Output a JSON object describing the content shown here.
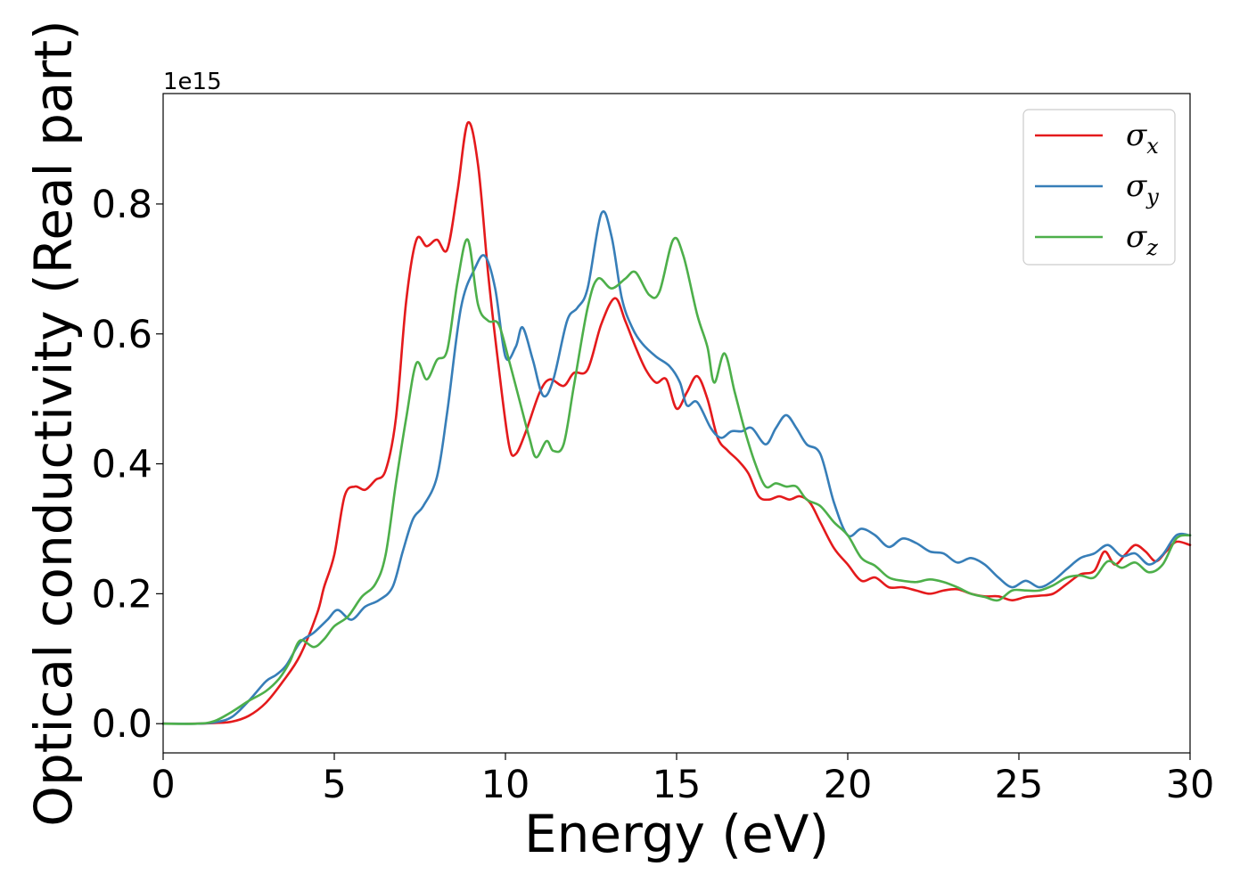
{
  "chart_data": {
    "type": "line",
    "title": "",
    "xlabel": "Energy (eV)",
    "ylabel": "Optical conductivity (Real part)",
    "y_offset_label": "1e15",
    "xlim": [
      0,
      30
    ],
    "ylim": [
      -0.045,
      0.97
    ],
    "x_ticks": [
      0,
      5,
      10,
      15,
      20,
      25,
      30
    ],
    "x_tick_labels": [
      "0",
      "5",
      "10",
      "15",
      "20",
      "25",
      "30"
    ],
    "y_ticks": [
      0.0,
      0.2,
      0.4,
      0.6,
      0.8
    ],
    "y_tick_labels": [
      "0.0",
      "0.2",
      "0.4",
      "0.6",
      "0.8"
    ],
    "grid": false,
    "legend_position": "top-right",
    "series": [
      {
        "name": "σx",
        "legend_symbol": "σ",
        "legend_sub": "x",
        "color": "#e41a1c",
        "points": [
          [
            0,
            0
          ],
          [
            1,
            0
          ],
          [
            1.5,
            0.001
          ],
          [
            2,
            0.003
          ],
          [
            2.5,
            0.012
          ],
          [
            3,
            0.032
          ],
          [
            3.5,
            0.065
          ],
          [
            4,
            0.105
          ],
          [
            4.5,
            0.17
          ],
          [
            4.7,
            0.21
          ],
          [
            5,
            0.26
          ],
          [
            5.3,
            0.35
          ],
          [
            5.6,
            0.365
          ],
          [
            5.9,
            0.36
          ],
          [
            6.2,
            0.375
          ],
          [
            6.5,
            0.39
          ],
          [
            6.8,
            0.47
          ],
          [
            7.1,
            0.65
          ],
          [
            7.4,
            0.745
          ],
          [
            7.7,
            0.735
          ],
          [
            8,
            0.745
          ],
          [
            8.3,
            0.73
          ],
          [
            8.6,
            0.82
          ],
          [
            8.9,
            0.925
          ],
          [
            9.2,
            0.86
          ],
          [
            9.5,
            0.69
          ],
          [
            9.8,
            0.55
          ],
          [
            10.1,
            0.43
          ],
          [
            10.3,
            0.415
          ],
          [
            10.6,
            0.45
          ],
          [
            11,
            0.51
          ],
          [
            11.3,
            0.53
          ],
          [
            11.7,
            0.52
          ],
          [
            12,
            0.54
          ],
          [
            12.4,
            0.545
          ],
          [
            12.8,
            0.615
          ],
          [
            13.2,
            0.655
          ],
          [
            13.5,
            0.62
          ],
          [
            13.8,
            0.58
          ],
          [
            14.1,
            0.545
          ],
          [
            14.4,
            0.525
          ],
          [
            14.7,
            0.53
          ],
          [
            15,
            0.485
          ],
          [
            15.3,
            0.51
          ],
          [
            15.6,
            0.535
          ],
          [
            15.9,
            0.5
          ],
          [
            16.2,
            0.44
          ],
          [
            16.5,
            0.42
          ],
          [
            16.8,
            0.405
          ],
          [
            17.1,
            0.385
          ],
          [
            17.4,
            0.35
          ],
          [
            17.7,
            0.345
          ],
          [
            18,
            0.35
          ],
          [
            18.3,
            0.345
          ],
          [
            18.6,
            0.35
          ],
          [
            18.9,
            0.34
          ],
          [
            19.2,
            0.31
          ],
          [
            19.6,
            0.27
          ],
          [
            20,
            0.245
          ],
          [
            20.4,
            0.22
          ],
          [
            20.8,
            0.225
          ],
          [
            21.2,
            0.21
          ],
          [
            21.6,
            0.21
          ],
          [
            22,
            0.205
          ],
          [
            22.4,
            0.2
          ],
          [
            22.8,
            0.205
          ],
          [
            23.2,
            0.207
          ],
          [
            23.6,
            0.2
          ],
          [
            24,
            0.196
          ],
          [
            24.4,
            0.196
          ],
          [
            24.8,
            0.19
          ],
          [
            25.2,
            0.195
          ],
          [
            25.6,
            0.197
          ],
          [
            26,
            0.2
          ],
          [
            26.4,
            0.215
          ],
          [
            26.8,
            0.23
          ],
          [
            27.2,
            0.235
          ],
          [
            27.5,
            0.265
          ],
          [
            27.8,
            0.245
          ],
          [
            28.1,
            0.26
          ],
          [
            28.4,
            0.275
          ],
          [
            28.7,
            0.265
          ],
          [
            29,
            0.25
          ],
          [
            29.3,
            0.265
          ],
          [
            29.6,
            0.28
          ],
          [
            30,
            0.275
          ]
        ]
      },
      {
        "name": "σy",
        "legend_symbol": "σ",
        "legend_sub": "y",
        "color": "#377eb8",
        "points": [
          [
            0,
            0
          ],
          [
            1,
            0
          ],
          [
            1.5,
            0.002
          ],
          [
            2,
            0.01
          ],
          [
            2.5,
            0.035
          ],
          [
            3,
            0.065
          ],
          [
            3.3,
            0.075
          ],
          [
            3.6,
            0.09
          ],
          [
            4,
            0.125
          ],
          [
            4.4,
            0.14
          ],
          [
            4.8,
            0.16
          ],
          [
            5.1,
            0.175
          ],
          [
            5.5,
            0.16
          ],
          [
            5.9,
            0.18
          ],
          [
            6.3,
            0.19
          ],
          [
            6.7,
            0.21
          ],
          [
            7,
            0.265
          ],
          [
            7.3,
            0.315
          ],
          [
            7.6,
            0.335
          ],
          [
            8,
            0.38
          ],
          [
            8.3,
            0.48
          ],
          [
            8.7,
            0.64
          ],
          [
            9.1,
            0.7
          ],
          [
            9.4,
            0.72
          ],
          [
            9.7,
            0.67
          ],
          [
            10,
            0.565
          ],
          [
            10.3,
            0.58
          ],
          [
            10.5,
            0.61
          ],
          [
            10.8,
            0.56
          ],
          [
            11.1,
            0.505
          ],
          [
            11.4,
            0.53
          ],
          [
            11.8,
            0.62
          ],
          [
            12.1,
            0.64
          ],
          [
            12.4,
            0.67
          ],
          [
            12.8,
            0.785
          ],
          [
            13.1,
            0.75
          ],
          [
            13.4,
            0.655
          ],
          [
            13.7,
            0.61
          ],
          [
            14,
            0.585
          ],
          [
            14.4,
            0.565
          ],
          [
            14.8,
            0.55
          ],
          [
            15.1,
            0.525
          ],
          [
            15.3,
            0.49
          ],
          [
            15.6,
            0.495
          ],
          [
            16,
            0.455
          ],
          [
            16.3,
            0.44
          ],
          [
            16.6,
            0.45
          ],
          [
            16.9,
            0.45
          ],
          [
            17.2,
            0.455
          ],
          [
            17.6,
            0.43
          ],
          [
            17.9,
            0.455
          ],
          [
            18.2,
            0.475
          ],
          [
            18.5,
            0.455
          ],
          [
            18.8,
            0.43
          ],
          [
            19.2,
            0.415
          ],
          [
            19.6,
            0.34
          ],
          [
            20,
            0.29
          ],
          [
            20.4,
            0.3
          ],
          [
            20.8,
            0.29
          ],
          [
            21.2,
            0.272
          ],
          [
            21.6,
            0.285
          ],
          [
            22,
            0.278
          ],
          [
            22.4,
            0.265
          ],
          [
            22.8,
            0.262
          ],
          [
            23.2,
            0.248
          ],
          [
            23.6,
            0.255
          ],
          [
            24,
            0.245
          ],
          [
            24.4,
            0.225
          ],
          [
            24.8,
            0.21
          ],
          [
            25.2,
            0.22
          ],
          [
            25.6,
            0.21
          ],
          [
            26,
            0.22
          ],
          [
            26.4,
            0.238
          ],
          [
            26.8,
            0.255
          ],
          [
            27.2,
            0.262
          ],
          [
            27.6,
            0.275
          ],
          [
            28,
            0.258
          ],
          [
            28.4,
            0.262
          ],
          [
            28.8,
            0.245
          ],
          [
            29.2,
            0.26
          ],
          [
            29.6,
            0.29
          ],
          [
            30,
            0.29
          ]
        ]
      },
      {
        "name": "σz",
        "legend_symbol": "σ",
        "legend_sub": "z",
        "color": "#4daf4a",
        "points": [
          [
            0,
            0
          ],
          [
            1,
            0
          ],
          [
            1.5,
            0.004
          ],
          [
            2,
            0.018
          ],
          [
            2.5,
            0.035
          ],
          [
            3,
            0.05
          ],
          [
            3.4,
            0.07
          ],
          [
            3.7,
            0.095
          ],
          [
            4,
            0.128
          ],
          [
            4.4,
            0.118
          ],
          [
            4.7,
            0.13
          ],
          [
            5,
            0.15
          ],
          [
            5.4,
            0.165
          ],
          [
            5.8,
            0.195
          ],
          [
            6.2,
            0.215
          ],
          [
            6.5,
            0.26
          ],
          [
            6.8,
            0.37
          ],
          [
            7.1,
            0.47
          ],
          [
            7.4,
            0.555
          ],
          [
            7.7,
            0.53
          ],
          [
            8,
            0.56
          ],
          [
            8.3,
            0.575
          ],
          [
            8.6,
            0.68
          ],
          [
            8.9,
            0.745
          ],
          [
            9.2,
            0.645
          ],
          [
            9.5,
            0.62
          ],
          [
            9.8,
            0.615
          ],
          [
            10.1,
            0.56
          ],
          [
            10.4,
            0.5
          ],
          [
            10.7,
            0.44
          ],
          [
            10.9,
            0.41
          ],
          [
            11.2,
            0.435
          ],
          [
            11.4,
            0.42
          ],
          [
            11.7,
            0.43
          ],
          [
            12,
            0.52
          ],
          [
            12.4,
            0.64
          ],
          [
            12.7,
            0.685
          ],
          [
            13.1,
            0.67
          ],
          [
            13.5,
            0.685
          ],
          [
            13.8,
            0.695
          ],
          [
            14.2,
            0.66
          ],
          [
            14.5,
            0.665
          ],
          [
            14.9,
            0.745
          ],
          [
            15.2,
            0.72
          ],
          [
            15.6,
            0.63
          ],
          [
            15.9,
            0.58
          ],
          [
            16.1,
            0.525
          ],
          [
            16.4,
            0.57
          ],
          [
            16.7,
            0.51
          ],
          [
            17,
            0.45
          ],
          [
            17.3,
            0.4
          ],
          [
            17.6,
            0.365
          ],
          [
            17.9,
            0.37
          ],
          [
            18.2,
            0.365
          ],
          [
            18.5,
            0.365
          ],
          [
            18.8,
            0.345
          ],
          [
            19.2,
            0.335
          ],
          [
            19.6,
            0.31
          ],
          [
            20,
            0.29
          ],
          [
            20.4,
            0.255
          ],
          [
            20.8,
            0.243
          ],
          [
            21.2,
            0.225
          ],
          [
            21.6,
            0.22
          ],
          [
            22,
            0.218
          ],
          [
            22.4,
            0.222
          ],
          [
            22.8,
            0.218
          ],
          [
            23.2,
            0.21
          ],
          [
            23.6,
            0.2
          ],
          [
            24,
            0.195
          ],
          [
            24.4,
            0.19
          ],
          [
            24.8,
            0.205
          ],
          [
            25.2,
            0.205
          ],
          [
            25.6,
            0.205
          ],
          [
            26,
            0.213
          ],
          [
            26.4,
            0.225
          ],
          [
            26.8,
            0.228
          ],
          [
            27.2,
            0.225
          ],
          [
            27.6,
            0.25
          ],
          [
            28,
            0.24
          ],
          [
            28.4,
            0.248
          ],
          [
            28.8,
            0.233
          ],
          [
            29.2,
            0.245
          ],
          [
            29.6,
            0.285
          ],
          [
            30,
            0.29
          ]
        ]
      }
    ]
  }
}
